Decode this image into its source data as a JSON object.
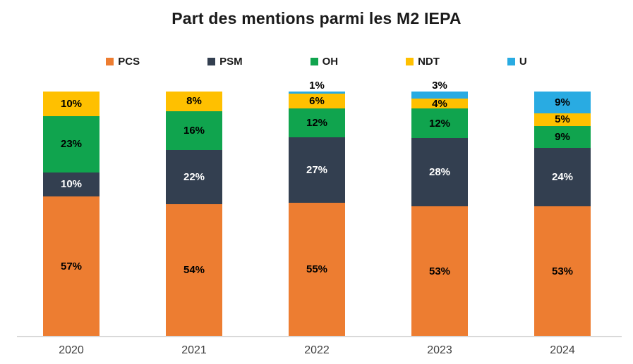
{
  "chart_data": {
    "type": "bar",
    "subtype": "stacked-100",
    "title": "Part des mentions parmi les M2 IEPA",
    "categories": [
      "2020",
      "2021",
      "2022",
      "2023",
      "2024"
    ],
    "series": [
      {
        "name": "PCS",
        "color": "#ED7D31",
        "label_color": "#000000",
        "values": [
          57,
          54,
          55,
          53,
          53
        ]
      },
      {
        "name": "PSM",
        "color": "#333F50",
        "label_color": "#FFFFFF",
        "values": [
          10,
          22,
          27,
          28,
          24
        ]
      },
      {
        "name": "OH",
        "color": "#10A44E",
        "label_color": "#000000",
        "values": [
          23,
          16,
          12,
          12,
          9
        ]
      },
      {
        "name": "NDT",
        "color": "#FFC000",
        "label_color": "#000000",
        "values": [
          10,
          8,
          6,
          4,
          5
        ]
      },
      {
        "name": "U",
        "color": "#29ABE2",
        "label_color": "#000000",
        "values": [
          0,
          0,
          1,
          3,
          9
        ]
      }
    ],
    "value_suffix": "%",
    "legend_position": "top",
    "grid": false,
    "y_axis_visible": false,
    "axis_line_color": "#d9d9d9"
  }
}
